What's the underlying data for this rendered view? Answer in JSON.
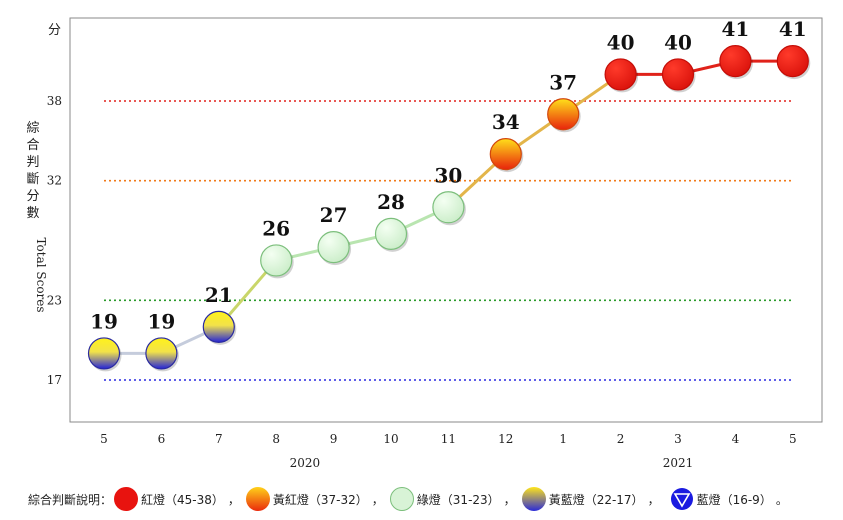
{
  "chart_data": {
    "type": "line",
    "y_unit_label": "分",
    "ylabel_zh": "綜合判斷分數",
    "ylabel_en": "Total Scores",
    "ylim": [
      12,
      45
    ],
    "yticks": [
      17,
      23,
      32,
      38
    ],
    "categories": [
      "5",
      "6",
      "7",
      "8",
      "9",
      "10",
      "11",
      "12",
      "1",
      "2",
      "3",
      "4",
      "5"
    ],
    "values": [
      19,
      19,
      21,
      26,
      27,
      28,
      30,
      34,
      37,
      40,
      40,
      41,
      41
    ],
    "year_labels": [
      {
        "label": "2020",
        "from": 0,
        "to": 7
      },
      {
        "label": "2021",
        "from": 8,
        "to": 12
      }
    ],
    "thresholds": [
      {
        "value": 38,
        "color": "#e0201b"
      },
      {
        "value": 32,
        "color": "#f07a1a"
      },
      {
        "value": 23,
        "color": "#2a9a2a"
      },
      {
        "value": 17,
        "color": "#2a2ae0"
      }
    ],
    "signal_colors": {
      "red": "#e8130f",
      "yellow_red_top": "#ffd21a",
      "yellow_red_bottom": "#ea2a0c",
      "green": "#d8f3d6",
      "yellow_blue_top": "#ffe51a",
      "yellow_blue_bottom": "#2a2ad8",
      "blue": "#1a1ae0"
    }
  },
  "legend": {
    "title": "綜合判斷說明：",
    "items": [
      {
        "key": "red",
        "label": "紅燈（45-38）",
        "sep": "，"
      },
      {
        "key": "yellow_red",
        "label": "黃紅燈（37-32）",
        "sep": "，"
      },
      {
        "key": "green",
        "label": "綠燈（31-23）",
        "sep": "，"
      },
      {
        "key": "yellow_blue",
        "label": "黃藍燈（22-17）",
        "sep": "，"
      },
      {
        "key": "blue",
        "label": "藍燈（16-9）",
        "sep": "。"
      }
    ]
  }
}
